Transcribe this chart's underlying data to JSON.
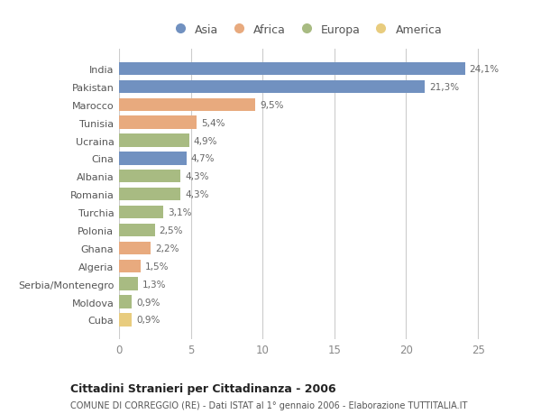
{
  "countries": [
    "India",
    "Pakistan",
    "Marocco",
    "Tunisia",
    "Ucraina",
    "Cina",
    "Albania",
    "Romania",
    "Turchia",
    "Polonia",
    "Ghana",
    "Algeria",
    "Serbia/Montenegro",
    "Moldova",
    "Cuba"
  ],
  "values": [
    24.1,
    21.3,
    9.5,
    5.4,
    4.9,
    4.7,
    4.3,
    4.3,
    3.1,
    2.5,
    2.2,
    1.5,
    1.3,
    0.9,
    0.9
  ],
  "labels": [
    "24,1%",
    "21,3%",
    "9,5%",
    "5,4%",
    "4,9%",
    "4,7%",
    "4,3%",
    "4,3%",
    "3,1%",
    "2,5%",
    "2,2%",
    "1,5%",
    "1,3%",
    "0,9%",
    "0,9%"
  ],
  "continents": [
    "Asia",
    "Asia",
    "Africa",
    "Africa",
    "Europa",
    "Asia",
    "Europa",
    "Europa",
    "Europa",
    "Europa",
    "Africa",
    "Africa",
    "Europa",
    "Europa",
    "America"
  ],
  "colors": {
    "Asia": "#7191c0",
    "Africa": "#e8aa7e",
    "Europa": "#a8bb82",
    "America": "#e8cc7e"
  },
  "legend_order": [
    "Asia",
    "Africa",
    "Europa",
    "America"
  ],
  "xlim": [
    0,
    26
  ],
  "xticks": [
    0,
    5,
    10,
    15,
    20,
    25
  ],
  "title": "Cittadini Stranieri per Cittadinanza - 2006",
  "subtitle": "COMUNE DI CORREGGIO (RE) - Dati ISTAT al 1° gennaio 2006 - Elaborazione TUTTITALIA.IT",
  "bg_color": "#ffffff",
  "grid_color": "#cccccc",
  "bar_height": 0.72
}
